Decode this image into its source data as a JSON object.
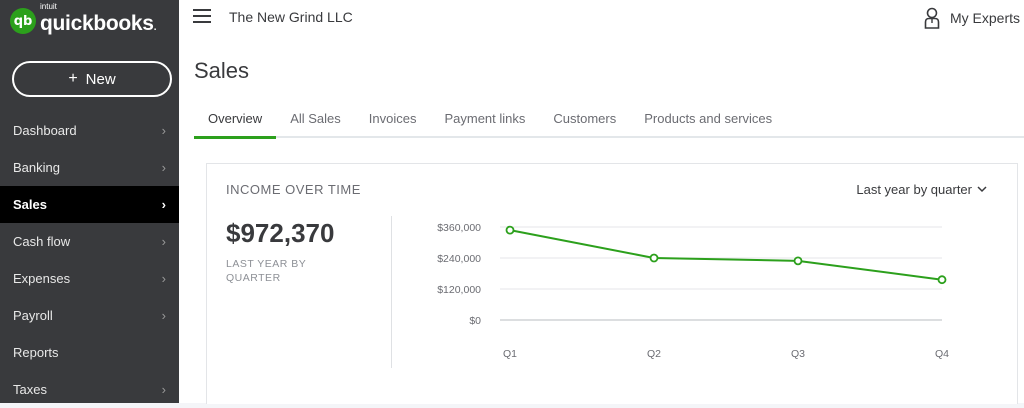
{
  "brand": {
    "logo_mark": "qb",
    "intuit": "intuit",
    "name": "quickbooks",
    "name_suffix": "."
  },
  "sidebar": {
    "new_label": "New",
    "items": [
      {
        "label": "Dashboard",
        "chevron": true
      },
      {
        "label": "Banking",
        "chevron": true
      },
      {
        "label": "Sales",
        "chevron": true,
        "active": true
      },
      {
        "label": "Cash flow",
        "chevron": true
      },
      {
        "label": "Expenses",
        "chevron": true
      },
      {
        "label": "Payroll",
        "chevron": true
      },
      {
        "label": "Reports",
        "chevron": false
      },
      {
        "label": "Taxes",
        "chevron": true
      }
    ]
  },
  "header": {
    "company": "The New Grind LLC",
    "experts": "My Experts"
  },
  "page": {
    "title": "Sales"
  },
  "tabs": [
    {
      "label": "Overview",
      "active": true
    },
    {
      "label": "All Sales"
    },
    {
      "label": "Invoices"
    },
    {
      "label": "Payment links"
    },
    {
      "label": "Customers"
    },
    {
      "label": "Products and services"
    }
  ],
  "card": {
    "title": "INCOME OVER TIME",
    "period": "Last year by quarter",
    "amount": "$972,370",
    "amount_caption": "LAST YEAR BY QUARTER"
  },
  "colors": {
    "accent": "#2ca01c",
    "sidebar": "#393a3d"
  },
  "chart_data": {
    "type": "line",
    "categories": [
      "Q1",
      "Q2",
      "Q3",
      "Q4"
    ],
    "values": [
      348000,
      240000,
      229000,
      156000
    ],
    "ylim": [
      0,
      360000
    ],
    "yticks": [
      0,
      120000,
      240000,
      360000
    ],
    "ytick_labels": [
      "$0",
      "$120,000",
      "$240,000",
      "$360,000"
    ],
    "grid": true
  }
}
